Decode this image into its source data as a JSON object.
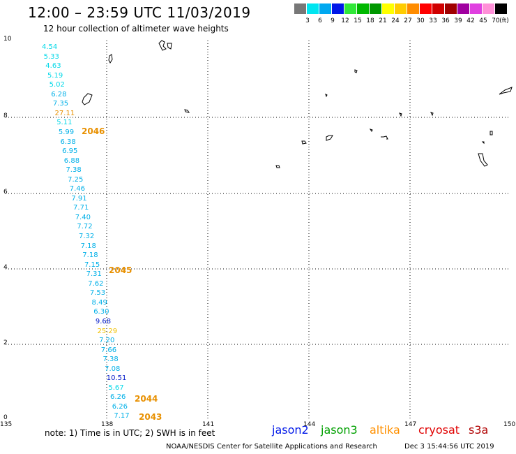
{
  "title": "12:00 – 23:59 UTC 11/03/2019",
  "subtitle": "12 hour collection of altimeter wave heights",
  "legend": {
    "unit": "(ft)",
    "items": [
      {
        "label": "3",
        "color": "#777777"
      },
      {
        "label": "6",
        "color": "#00e5f0"
      },
      {
        "label": "9",
        "color": "#00a8f0"
      },
      {
        "label": "12",
        "color": "#0018e8"
      },
      {
        "label": "15",
        "color": "#30e838"
      },
      {
        "label": "18",
        "color": "#00b800"
      },
      {
        "label": "21",
        "color": "#009800"
      },
      {
        "label": "24",
        "color": "#ffff00"
      },
      {
        "label": "27",
        "color": "#ffcc00"
      },
      {
        "label": "30",
        "color": "#ff8c00"
      },
      {
        "label": "33",
        "color": "#ff0000"
      },
      {
        "label": "36",
        "color": "#d00000"
      },
      {
        "label": "39",
        "color": "#a00000"
      },
      {
        "label": "42",
        "color": "#a000a0"
      },
      {
        "label": "45",
        "color": "#e040e0"
      },
      {
        "label": "70",
        "color": "#ff90d8"
      },
      {
        "label": "",
        "color": "#000000"
      }
    ]
  },
  "axes": {
    "x_ticks": [
      "135",
      "138",
      "141",
      "144",
      "147",
      "150"
    ],
    "y_ticks": [
      "10",
      "8",
      "6",
      "4",
      "2",
      "0"
    ]
  },
  "observations": [
    {
      "v": "4.54",
      "c": "#00d8e8"
    },
    {
      "v": "5.33",
      "c": "#00d8e8"
    },
    {
      "v": "4.63",
      "c": "#00d8e8"
    },
    {
      "v": "5.19",
      "c": "#00d8e8"
    },
    {
      "v": "5.02",
      "c": "#00d8e8"
    },
    {
      "v": "6.28",
      "c": "#00b0e8"
    },
    {
      "v": "7.35",
      "c": "#00b0e8"
    },
    {
      "v": "27.11",
      "c": "#e89000"
    },
    {
      "v": "5.11",
      "c": "#00d8e8"
    },
    {
      "v": "5.99",
      "c": "#00b0e8"
    },
    {
      "v": "6.38",
      "c": "#00b0e8"
    },
    {
      "v": "6.95",
      "c": "#00b0e8"
    },
    {
      "v": "6.88",
      "c": "#00b0e8"
    },
    {
      "v": "7.38",
      "c": "#00b0e8"
    },
    {
      "v": "7.25",
      "c": "#00b0e8"
    },
    {
      "v": "7.46",
      "c": "#00b0e8"
    },
    {
      "v": "7.91",
      "c": "#00b0e8"
    },
    {
      "v": "7.71",
      "c": "#00b0e8"
    },
    {
      "v": "7.40",
      "c": "#00b0e8"
    },
    {
      "v": "7.72",
      "c": "#00b0e8"
    },
    {
      "v": "7.32",
      "c": "#00b0e8"
    },
    {
      "v": "7.18",
      "c": "#00b0e8"
    },
    {
      "v": "7.18",
      "c": "#00b0e8"
    },
    {
      "v": "7.15",
      "c": "#00b0e8"
    },
    {
      "v": "7.31",
      "c": "#00b0e8"
    },
    {
      "v": "7.62",
      "c": "#00b0e8"
    },
    {
      "v": "7.53",
      "c": "#00b0e8"
    },
    {
      "v": "8.49",
      "c": "#00b0e8"
    },
    {
      "v": "6.30",
      "c": "#00b0e8"
    },
    {
      "v": "9.68",
      "c": "#0018c8"
    },
    {
      "v": "25.29",
      "c": "#f0c000"
    },
    {
      "v": "7.20",
      "c": "#00b0e8"
    },
    {
      "v": "7.66",
      "c": "#00b0e8"
    },
    {
      "v": "7.38",
      "c": "#00b0e8"
    },
    {
      "v": "7.08",
      "c": "#00b0e8"
    },
    {
      "v": "10.51",
      "c": "#0018c8"
    },
    {
      "v": "5.67",
      "c": "#00d8e8"
    },
    {
      "v": "6.26",
      "c": "#00b0e8"
    },
    {
      "v": "6.26",
      "c": "#00b0e8"
    },
    {
      "v": "7.17",
      "c": "#00b0e8"
    }
  ],
  "time_tags": [
    {
      "t": "2046",
      "c": "#e89000"
    },
    {
      "t": "2045",
      "c": "#e89000"
    },
    {
      "t": "2044",
      "c": "#e89000"
    },
    {
      "t": "2043",
      "c": "#e89000"
    }
  ],
  "note": "note:  1) Time is in UTC;  2) SWH is in feet",
  "satellites": [
    {
      "name": "jason2",
      "color": "#0018e8"
    },
    {
      "name": "jason3",
      "color": "#00a000"
    },
    {
      "name": "altika",
      "color": "#ff9000"
    },
    {
      "name": "cryosat",
      "color": "#e00000"
    },
    {
      "name": "s3a",
      "color": "#b00000"
    }
  ],
  "footer": {
    "credit": "NOAA/NESDIS Center for Satellite Applications and Research",
    "timestamp": "Dec  3 15:44:56 UTC 2019"
  }
}
